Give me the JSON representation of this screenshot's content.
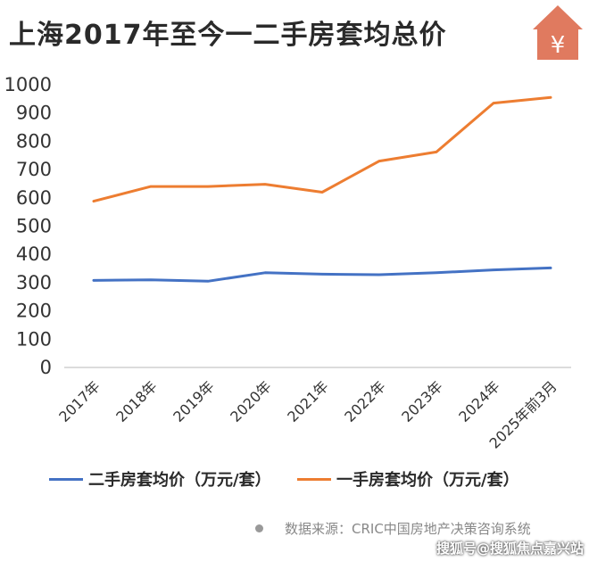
{
  "title": "上海2017年至今一二手房套均总价",
  "logo": {
    "icon": "house-yen-icon",
    "symbol": "¥",
    "color": "#e07a5f"
  },
  "chart_data": {
    "type": "line",
    "categories": [
      "2017年",
      "2018年",
      "2019年",
      "2020年",
      "2021年",
      "2022年",
      "2023年",
      "2024年",
      "2025年前3月"
    ],
    "series": [
      {
        "name": "二手房套均价（万元/套）",
        "color": "#4472c4",
        "values": [
          308,
          310,
          305,
          335,
          330,
          328,
          335,
          345,
          352
        ]
      },
      {
        "name": "一手房套均价（万元/套）",
        "color": "#ed7d31",
        "values": [
          588,
          640,
          640,
          648,
          620,
          730,
          762,
          935,
          955
        ]
      }
    ],
    "yticks": [
      0,
      100,
      200,
      300,
      400,
      500,
      600,
      700,
      800,
      900,
      1000
    ],
    "ylim": [
      0,
      1000
    ],
    "grid": false,
    "legend": "bottom"
  },
  "source": "数据来源：CRIC中国房地产决策咨询系统",
  "watermark": "搜狐号@搜狐焦点嘉兴站"
}
